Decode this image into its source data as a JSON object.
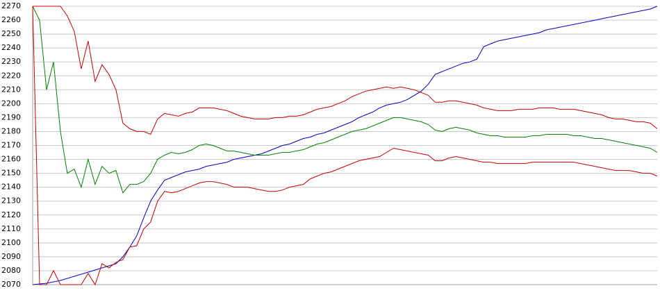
{
  "chart_data": {
    "type": "line",
    "ylim": [
      2070,
      2270
    ],
    "yticks": [
      2070,
      2080,
      2090,
      2100,
      2110,
      2120,
      2130,
      2140,
      2150,
      2160,
      2170,
      2180,
      2190,
      2200,
      2210,
      2220,
      2230,
      2240,
      2250,
      2260,
      2270
    ],
    "grid": true,
    "series": [
      {
        "color": "#0000c0",
        "values": [
          2070,
          2070.5,
          2071,
          2072,
          2073,
          2074.5,
          2076,
          2077.5,
          2079,
          2080.5,
          2082,
          2083.5,
          2085,
          2090,
          2097,
          2105,
          2118,
          2130,
          2138,
          2145,
          2147,
          2149,
          2151,
          2152,
          2153,
          2155,
          2156,
          2157,
          2158,
          2160,
          2161,
          2162,
          2163,
          2164,
          2166,
          2168,
          2170,
          2171,
          2173,
          2175,
          2176,
          2178,
          2179,
          2181,
          2183,
          2185,
          2187,
          2190,
          2192,
          2194,
          2197,
          2199,
          2200,
          2201,
          2203,
          2206,
          2209,
          2214,
          2221,
          2223,
          2225,
          2227,
          2229,
          2230,
          2232,
          2241,
          2243,
          2245,
          2246,
          2247,
          2248,
          2249,
          2250,
          2251,
          2253,
          2254,
          2255,
          2256,
          2257,
          2258,
          2259,
          2260,
          2261,
          2262,
          2263,
          2264,
          2265,
          2266,
          2267,
          2268,
          2270
        ]
      },
      {
        "color": "#c00000",
        "values": [
          2270,
          2270,
          2270,
          2270,
          2270,
          2263,
          2252,
          2225,
          2245,
          2216,
          2228,
          2221,
          2210,
          2186,
          2182,
          2180,
          2180,
          2178,
          2189,
          2193,
          2192,
          2191,
          2193,
          2194,
          2197,
          2197,
          2197,
          2196,
          2195,
          2193,
          2191,
          2190,
          2189,
          2189,
          2189,
          2190,
          2190,
          2191,
          2191,
          2192,
          2194,
          2196,
          2197,
          2198,
          2200,
          2202,
          2205,
          2207,
          2209,
          2210,
          2211,
          2212,
          2211,
          2212,
          2211,
          2210,
          2208,
          2206,
          2201,
          2201,
          2202,
          2202,
          2201,
          2200,
          2199,
          2197,
          2196,
          2195,
          2195,
          2195,
          2196,
          2196,
          2196,
          2197,
          2197,
          2197,
          2196,
          2196,
          2196,
          2195,
          2194,
          2193,
          2192,
          2190,
          2189,
          2189,
          2188,
          2187,
          2187,
          2186,
          2182
        ]
      },
      {
        "color": "#008000",
        "values": [
          2270,
          2260,
          2210,
          2230,
          2180,
          2150,
          2153,
          2140,
          2160,
          2142,
          2155,
          2150,
          2152,
          2136,
          2142,
          2142,
          2144,
          2150,
          2160,
          2163,
          2165,
          2164,
          2165,
          2167,
          2170,
          2171,
          2170,
          2168,
          2166,
          2166,
          2165,
          2164,
          2163,
          2163,
          2163,
          2164,
          2165,
          2165,
          2166,
          2167,
          2169,
          2171,
          2172,
          2174,
          2176,
          2178,
          2180,
          2181,
          2182,
          2184,
          2186,
          2188,
          2190,
          2190,
          2189,
          2188,
          2187,
          2185,
          2181,
          2180,
          2182,
          2183,
          2182,
          2181,
          2179,
          2178,
          2177,
          2177,
          2176,
          2176,
          2176,
          2176,
          2177,
          2177,
          2178,
          2178,
          2178,
          2178,
          2177,
          2177,
          2176,
          2175,
          2175,
          2174,
          2173,
          2172,
          2171,
          2170,
          2169,
          2168,
          2165
        ]
      },
      {
        "color": "#c00000",
        "values": [
          2270,
          2070,
          2070,
          2080,
          2070,
          2070,
          2070,
          2070,
          2078,
          2070,
          2085,
          2082,
          2086,
          2088,
          2097,
          2098,
          2110,
          2115,
          2130,
          2137,
          2136,
          2137,
          2139,
          2141,
          2143,
          2144,
          2144,
          2143,
          2142,
          2140,
          2140,
          2140,
          2139,
          2138,
          2137,
          2137,
          2138,
          2140,
          2141,
          2142,
          2146,
          2148,
          2150,
          2151,
          2153,
          2155,
          2157,
          2159,
          2160,
          2161,
          2162,
          2165,
          2168,
          2167,
          2166,
          2165,
          2164,
          2163,
          2159,
          2159,
          2161,
          2162,
          2161,
          2160,
          2159,
          2158,
          2158,
          2157,
          2157,
          2157,
          2157,
          2157,
          2158,
          2158,
          2158,
          2158,
          2158,
          2158,
          2158,
          2157,
          2156,
          2155,
          2154,
          2153,
          2152,
          2152,
          2152,
          2151,
          2150,
          2150,
          2148
        ]
      }
    ]
  }
}
